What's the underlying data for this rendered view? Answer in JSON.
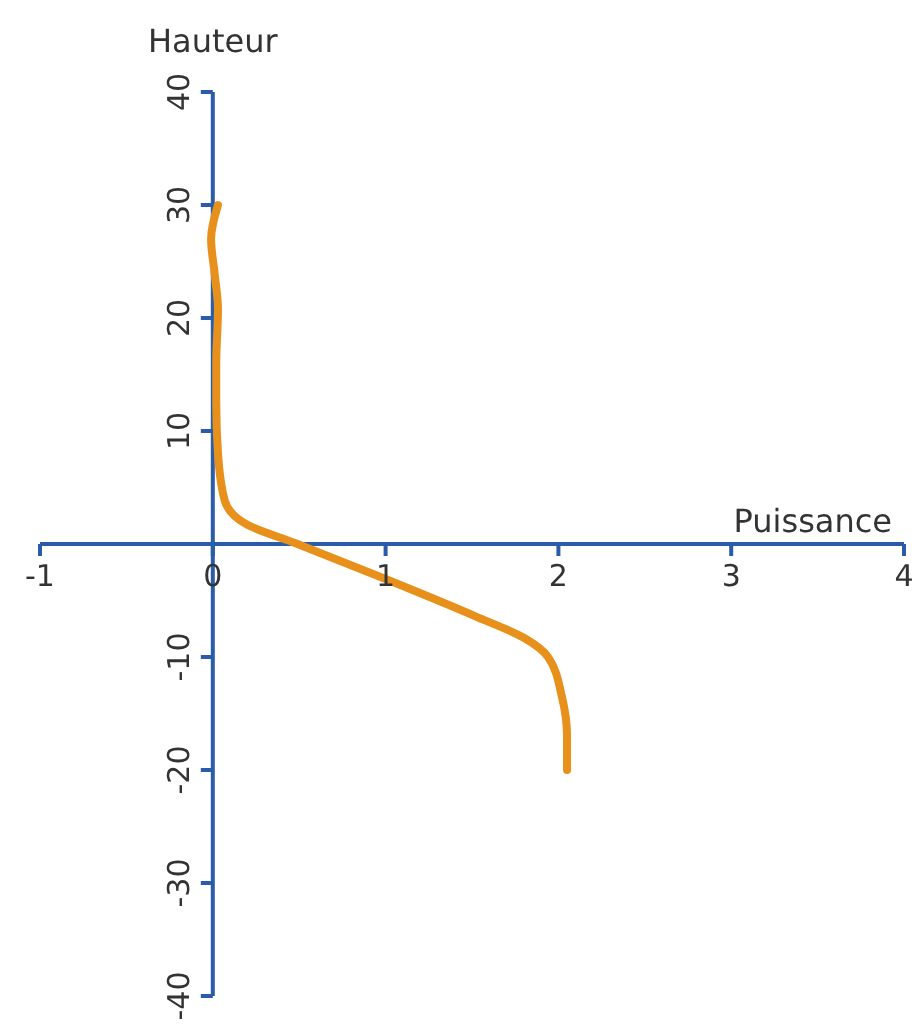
{
  "chart_data": {
    "type": "line",
    "xlabel": "Puissance",
    "ylabel": "Hauteur",
    "xlim": [
      -1,
      4
    ],
    "ylim": [
      -40,
      40
    ],
    "xticks": [
      -1,
      0,
      1,
      2,
      3,
      4
    ],
    "yticks": [
      -40,
      -30,
      -20,
      -10,
      10,
      20,
      30,
      40
    ],
    "marker": "none",
    "line_style": "solid",
    "series": [
      {
        "color": "#e8901c",
        "x": [
          0.03,
          -0.01,
          0.01,
          0.03,
          0.02,
          0.02,
          0.03,
          0.07,
          0.2,
          0.49,
          1.0,
          1.52,
          1.8,
          1.94,
          2.02,
          2.05,
          2.05
        ],
        "values": [
          30,
          27,
          24,
          20.8,
          16,
          12.5,
          8,
          3.8,
          1.7,
          0,
          -3.1,
          -6.4,
          -8.3,
          -10,
          -13.5,
          -17,
          -20
        ]
      }
    ]
  }
}
